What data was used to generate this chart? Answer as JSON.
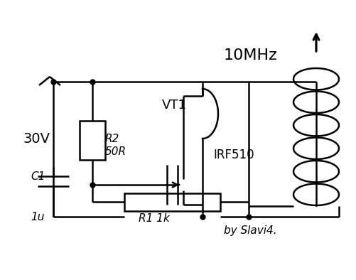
{
  "bg_color": "#ffffff",
  "lc": "#000000",
  "lw": 1.8,
  "fig_w": 5.01,
  "fig_h": 3.94,
  "dpi": 100,
  "xlim": [
    0,
    501
  ],
  "ylim": [
    0,
    394
  ]
}
